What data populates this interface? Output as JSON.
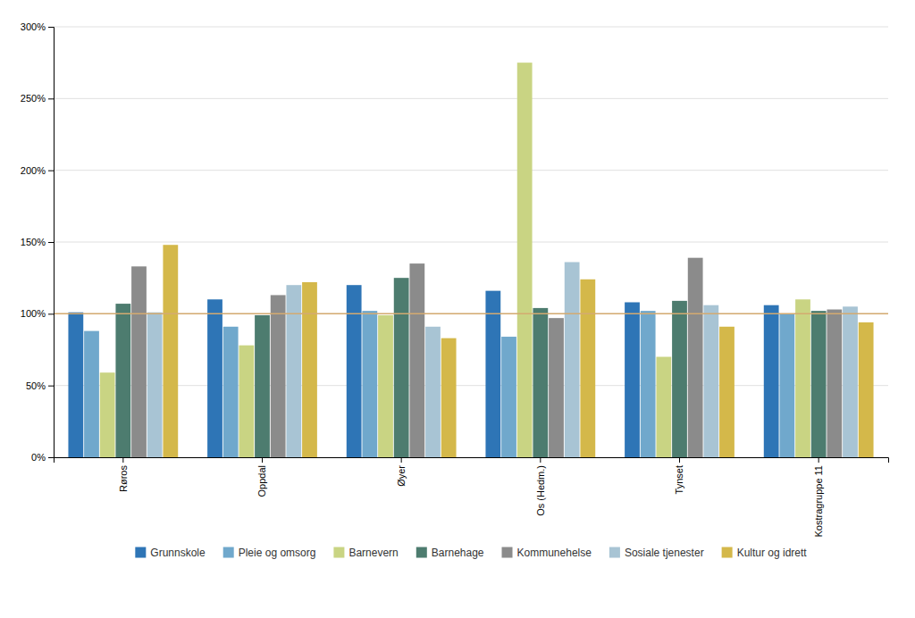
{
  "chart_data": {
    "type": "bar",
    "categories": [
      "Røros",
      "Oppdal",
      "Øyer",
      "Os (Hedm.)",
      "Tynset",
      "Kostragruppe 11"
    ],
    "series": [
      {
        "name": "Grunnskole",
        "color": "#2E75B6",
        "values": [
          101,
          110,
          120,
          116,
          108,
          106
        ]
      },
      {
        "name": "Pleie og omsorg",
        "color": "#70A8CC",
        "values": [
          88,
          91,
          102,
          84,
          102,
          100
        ]
      },
      {
        "name": "Barnevern",
        "color": "#C9D483",
        "values": [
          59,
          78,
          99,
          275,
          70,
          110
        ]
      },
      {
        "name": "Barnehage",
        "color": "#4D7C6F",
        "values": [
          107,
          99,
          125,
          104,
          109,
          102
        ]
      },
      {
        "name": "Kommunehelse",
        "color": "#8B8B8B",
        "values": [
          133,
          113,
          135,
          97,
          139,
          103
        ]
      },
      {
        "name": "Sosiale tjenester",
        "color": "#A8C4D4",
        "values": [
          101,
          120,
          91,
          136,
          106,
          105
        ]
      },
      {
        "name": "Kultur og idrett",
        "color": "#D4B84A",
        "values": [
          148,
          122,
          83,
          124,
          91,
          94
        ]
      }
    ],
    "ylim": [
      0,
      300
    ],
    "yticks": [
      {
        "value": 0,
        "label": "0%"
      },
      {
        "value": 50,
        "label": "50%"
      },
      {
        "value": 100,
        "label": "100%"
      },
      {
        "value": 150,
        "label": "150%"
      },
      {
        "value": 200,
        "label": "200%"
      },
      {
        "value": 250,
        "label": "250%"
      },
      {
        "value": 300,
        "label": "300%"
      }
    ],
    "reference_line": {
      "value": 100,
      "color": "#D4AA70"
    },
    "grid": true,
    "legend": "bottom"
  }
}
